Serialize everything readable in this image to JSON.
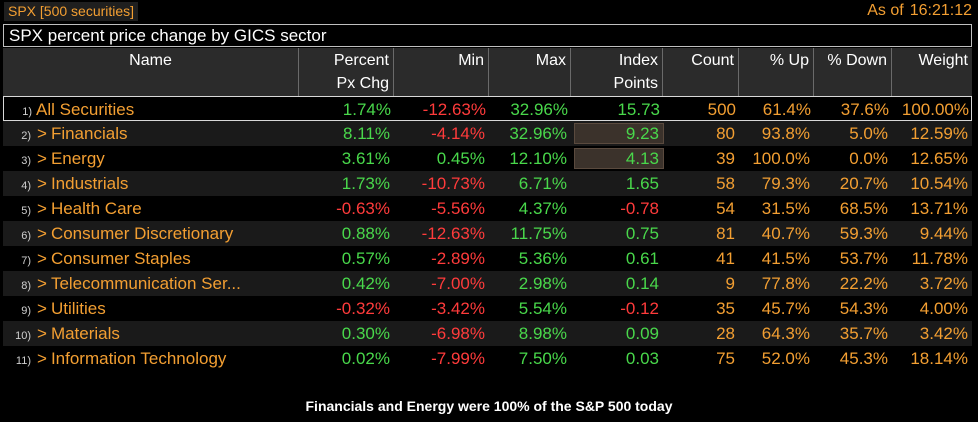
{
  "topbar": {
    "security": "SPX [500 securities]",
    "as_of_label": "As of",
    "time": "16:21:12"
  },
  "title": "SPX percent price change by GICS sector",
  "columns": {
    "name": "Name",
    "pct_line1": "Percent",
    "pct_line2": "Px Chg",
    "min": "Min",
    "max": "Max",
    "idx_line1": "Index",
    "idx_line2": "Points",
    "count": "Count",
    "up": "% Up",
    "down": "% Down",
    "weight": "Weight"
  },
  "rows": [
    {
      "idx": "1)",
      "arrow": "",
      "name": "All Securities",
      "pct": "1.74%",
      "min": "-12.63%",
      "max": "32.96%",
      "points": "15.73",
      "count": "500",
      "up": "61.4%",
      "down": "37.6%",
      "weight": "100.00%"
    },
    {
      "idx": "2)",
      "arrow": ">",
      "name": "Financials",
      "pct": "8.11%",
      "min": "-4.14%",
      "max": "32.96%",
      "points": "9.23",
      "count": "80",
      "up": "93.8%",
      "down": "5.0%",
      "weight": "12.59%"
    },
    {
      "idx": "3)",
      "arrow": ">",
      "name": "Energy",
      "pct": "3.61%",
      "min": "0.45%",
      "max": "12.10%",
      "points": "4.13",
      "count": "39",
      "up": "100.0%",
      "down": "0.0%",
      "weight": "12.65%"
    },
    {
      "idx": "4)",
      "arrow": ">",
      "name": "Industrials",
      "pct": "1.73%",
      "min": "-10.73%",
      "max": "6.71%",
      "points": "1.65",
      "count": "58",
      "up": "79.3%",
      "down": "20.7%",
      "weight": "10.54%"
    },
    {
      "idx": "5)",
      "arrow": ">",
      "name": "Health Care",
      "pct": "-0.63%",
      "min": "-5.56%",
      "max": "4.37%",
      "points": "-0.78",
      "count": "54",
      "up": "31.5%",
      "down": "68.5%",
      "weight": "13.71%"
    },
    {
      "idx": "6)",
      "arrow": ">",
      "name": "Consumer Discretionary",
      "pct": "0.88%",
      "min": "-12.63%",
      "max": "11.75%",
      "points": "0.75",
      "count": "81",
      "up": "40.7%",
      "down": "59.3%",
      "weight": "9.44%"
    },
    {
      "idx": "7)",
      "arrow": ">",
      "name": "Consumer Staples",
      "pct": "0.57%",
      "min": "-2.89%",
      "max": "5.36%",
      "points": "0.61",
      "count": "41",
      "up": "41.5%",
      "down": "53.7%",
      "weight": "11.78%"
    },
    {
      "idx": "8)",
      "arrow": ">",
      "name": "Telecommunication Ser...",
      "pct": "0.42%",
      "min": "-7.00%",
      "max": "2.98%",
      "points": "0.14",
      "count": "9",
      "up": "77.8%",
      "down": "22.2%",
      "weight": "3.72%"
    },
    {
      "idx": "9)",
      "arrow": ">",
      "name": "Utilities",
      "pct": "-0.32%",
      "min": "-3.42%",
      "max": "5.54%",
      "points": "-0.12",
      "count": "35",
      "up": "45.7%",
      "down": "54.3%",
      "weight": "4.00%"
    },
    {
      "idx": "10)",
      "arrow": ">",
      "name": "Materials",
      "pct": "0.30%",
      "min": "-6.98%",
      "max": "8.98%",
      "points": "0.09",
      "count": "28",
      "up": "64.3%",
      "down": "35.7%",
      "weight": "3.42%"
    },
    {
      "idx": "11)",
      "arrow": ">",
      "name": "Information Technology",
      "pct": "0.02%",
      "min": "-7.99%",
      "max": "7.50%",
      "points": "0.03",
      "count": "75",
      "up": "52.0%",
      "down": "45.3%",
      "weight": "18.14%"
    }
  ],
  "highlighted_rows": [
    1,
    2
  ],
  "footer": "Financials and Energy were 100% of the S&P 500 today",
  "colors": {
    "positive": "#49d84b",
    "negative": "#ff3b3b",
    "neutral": "#f39f32",
    "header_bg": "#2b2b2b"
  }
}
